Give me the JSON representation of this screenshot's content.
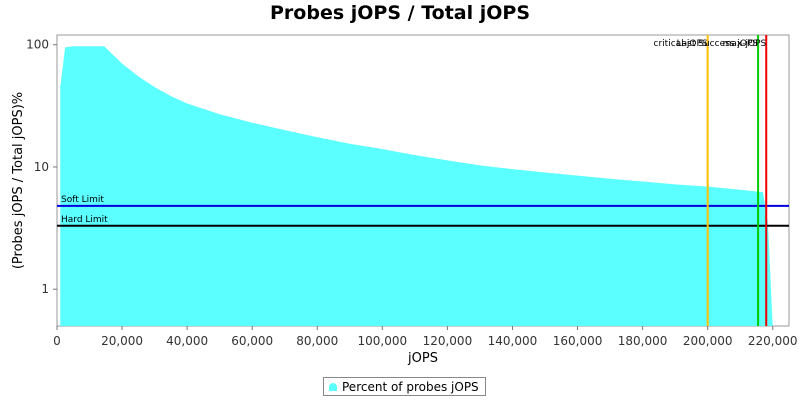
{
  "chart_data": {
    "type": "area",
    "title": "Probes jOPS / Total jOPS",
    "xlabel": "jOPS",
    "ylabel": "(Probes jOPS / Total jOPS)%",
    "xlim": [
      0,
      225000
    ],
    "ylim": [
      0.5,
      120
    ],
    "yscale": "log",
    "x_ticks": [
      0,
      20000,
      40000,
      60000,
      80000,
      100000,
      120000,
      140000,
      160000,
      180000,
      200000,
      220000
    ],
    "x_tick_labels": [
      "0",
      "20,000",
      "40,000",
      "60,000",
      "80,000",
      "100,000",
      "120,000",
      "140,000",
      "160,000",
      "180,000",
      "200,000",
      "220,000"
    ],
    "y_ticks": [
      1,
      10,
      100
    ],
    "y_tick_labels": [
      "1",
      "10",
      "100"
    ],
    "grid": false,
    "legend_position": "bottom-center",
    "series": [
      {
        "name": "Percent of probes jOPS",
        "color": "#5bffff",
        "x": [
          1000,
          2500,
          5000,
          10000,
          14500,
          20000,
          25000,
          30000,
          35000,
          40000,
          50000,
          60000,
          70000,
          80000,
          90000,
          100000,
          110000,
          120000,
          130000,
          140000,
          150000,
          160000,
          170000,
          180000,
          190000,
          200000,
          210000,
          215000,
          217000,
          218500,
          220000
        ],
        "y": [
          45,
          95,
          97,
          97,
          97,
          70,
          55,
          45,
          38,
          33,
          27,
          23,
          20,
          17.5,
          15.5,
          14,
          12.5,
          11.3,
          10.3,
          9.6,
          9,
          8.5,
          8,
          7.6,
          7.2,
          6.9,
          6.5,
          6.3,
          6.2,
          3.5,
          0.5
        ]
      }
    ],
    "reference_lines": [
      {
        "orientation": "horizontal",
        "value": 4.8,
        "label": "Soft Limit",
        "color": "#0000dd"
      },
      {
        "orientation": "horizontal",
        "value": 3.3,
        "label": "Hard Limit",
        "color": "#000000"
      },
      {
        "orientation": "vertical",
        "value": 200000,
        "label": "critical-jOPS",
        "color": "#ffc000"
      },
      {
        "orientation": "vertical",
        "value": 215500,
        "label": "Last Success jOPS",
        "color": "#00cc00"
      },
      {
        "orientation": "vertical",
        "value": 218000,
        "label": "max-jOPS",
        "color": "#ee0000"
      }
    ]
  }
}
